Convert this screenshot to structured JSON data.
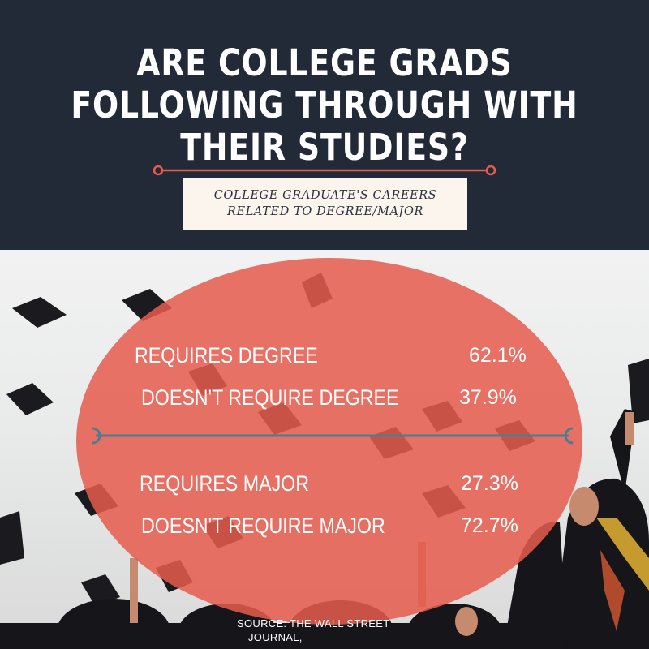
{
  "header": {
    "title": "ARE COLLEGE GRADS FOLLOWING THROUGH WITH THEIR STUDIES?",
    "subtitle_line1": "COLLEGE GRADUATE'S CAREERS",
    "subtitle_line2": "RELATED TO DEGREE/MAJOR"
  },
  "degree_stats": [
    {
      "label": "REQUIRES DEGREE",
      "value": "62.1%"
    },
    {
      "label": "DOESN'T REQUIRE DEGREE",
      "value": "37.9%"
    }
  ],
  "major_stats": [
    {
      "label": "REQUIRES MAJOR",
      "value": "27.3%"
    },
    {
      "label": "DOESN'T REQUIRE MAJOR",
      "value": "72.7%"
    }
  ],
  "footer": {
    "source_line1": "SOURCE: THE WALL STREET",
    "source_line2": "JOURNAL,"
  },
  "colors": {
    "header_bg": "#222a37",
    "accent": "#e65c4e",
    "divider": "#4a7d92",
    "subtitle_box": "#fbf5ee"
  }
}
